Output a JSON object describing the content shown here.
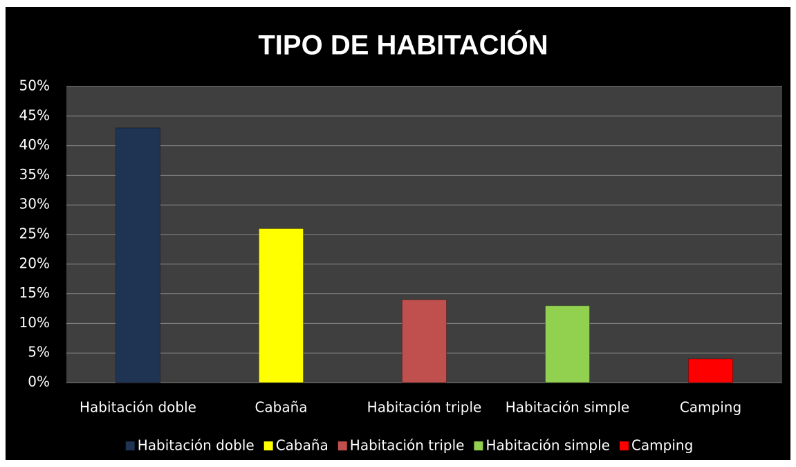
{
  "chart_data": {
    "type": "bar",
    "title": "TIPO DE HABITACIÓN",
    "categories": [
      "Habitación doble",
      "Cabaña",
      "Habitación triple",
      "Habitación simple",
      "Camping"
    ],
    "values": [
      43,
      26,
      14,
      13,
      4
    ],
    "colors": [
      "#1f3352",
      "#ffff00",
      "#c0504d",
      "#92d050",
      "#ff0000"
    ],
    "ylim": [
      0,
      50
    ],
    "yticks": [
      {
        "value": 0,
        "label": "0%"
      },
      {
        "value": 5,
        "label": "5%"
      },
      {
        "value": 10,
        "label": "10%"
      },
      {
        "value": 15,
        "label": "15%"
      },
      {
        "value": 20,
        "label": "20%"
      },
      {
        "value": 25,
        "label": "25%"
      },
      {
        "value": 30,
        "label": "30%"
      },
      {
        "value": 35,
        "label": "35%"
      },
      {
        "value": 40,
        "label": "40%"
      },
      {
        "value": 45,
        "label": "45%"
      },
      {
        "value": 50,
        "label": "50%"
      }
    ],
    "grid": true,
    "legend": "bottom"
  }
}
